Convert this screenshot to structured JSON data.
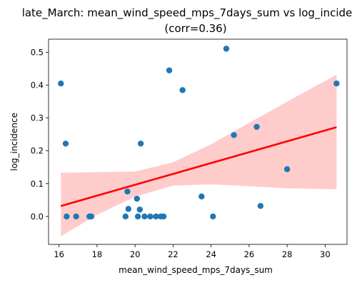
{
  "chart_data": {
    "type": "scatter",
    "title_line1": "late_March: mean_wind_speed_mps_7days_sum vs log_incide",
    "title_line2": "(corr=0.36)",
    "xlabel": "mean_wind_speed_mps_7days_sum",
    "ylabel": "log_incidence",
    "xlim": [
      15.45,
      31.15
    ],
    "ylim": [
      -0.085,
      0.54
    ],
    "xticks": [
      16,
      18,
      20,
      22,
      24,
      26,
      28,
      30
    ],
    "yticks": [
      0.0,
      0.1,
      0.2,
      0.3,
      0.4,
      0.5
    ],
    "xtick_labels": [
      "16",
      "18",
      "20",
      "22",
      "24",
      "26",
      "28",
      "30"
    ],
    "ytick_labels": [
      "0.0",
      "0.1",
      "0.2",
      "0.3",
      "0.4",
      "0.5"
    ],
    "grid": false,
    "colors": {
      "points": "#1f77b4",
      "regression_line": "#ff0000",
      "confidence_band": "#ffcccc"
    },
    "points": [
      {
        "x": 16.1,
        "y": 0.405
      },
      {
        "x": 16.35,
        "y": 0.222
      },
      {
        "x": 16.4,
        "y": 0.0
      },
      {
        "x": 16.9,
        "y": 0.0
      },
      {
        "x": 17.6,
        "y": 0.0
      },
      {
        "x": 17.7,
        "y": 0.0
      },
      {
        "x": 19.5,
        "y": 0.0
      },
      {
        "x": 19.6,
        "y": 0.076
      },
      {
        "x": 19.65,
        "y": 0.023
      },
      {
        "x": 20.1,
        "y": 0.054
      },
      {
        "x": 20.15,
        "y": 0.0
      },
      {
        "x": 20.25,
        "y": 0.021
      },
      {
        "x": 20.3,
        "y": 0.222
      },
      {
        "x": 20.5,
        "y": 0.0
      },
      {
        "x": 20.8,
        "y": 0.0
      },
      {
        "x": 21.1,
        "y": 0.0
      },
      {
        "x": 21.35,
        "y": 0.0
      },
      {
        "x": 21.5,
        "y": 0.0
      },
      {
        "x": 21.8,
        "y": 0.445
      },
      {
        "x": 22.5,
        "y": 0.385
      },
      {
        "x": 23.5,
        "y": 0.061
      },
      {
        "x": 24.1,
        "y": 0.0
      },
      {
        "x": 24.8,
        "y": 0.511
      },
      {
        "x": 25.2,
        "y": 0.248
      },
      {
        "x": 26.4,
        "y": 0.273
      },
      {
        "x": 26.6,
        "y": 0.032
      },
      {
        "x": 28.0,
        "y": 0.144
      },
      {
        "x": 30.6,
        "y": 0.405
      }
    ],
    "regression": {
      "x_start": 16.1,
      "y_start": 0.032,
      "x_end": 30.6,
      "y_end": 0.272
    },
    "confidence_band": {
      "x": [
        16.1,
        18,
        20,
        22,
        24,
        26,
        28,
        30.6
      ],
      "lower": [
        -0.06,
        0.005,
        0.06,
        0.094,
        0.098,
        0.092,
        0.086,
        0.083
      ],
      "upper": [
        0.133,
        0.135,
        0.137,
        0.165,
        0.22,
        0.285,
        0.35,
        0.432
      ]
    }
  }
}
